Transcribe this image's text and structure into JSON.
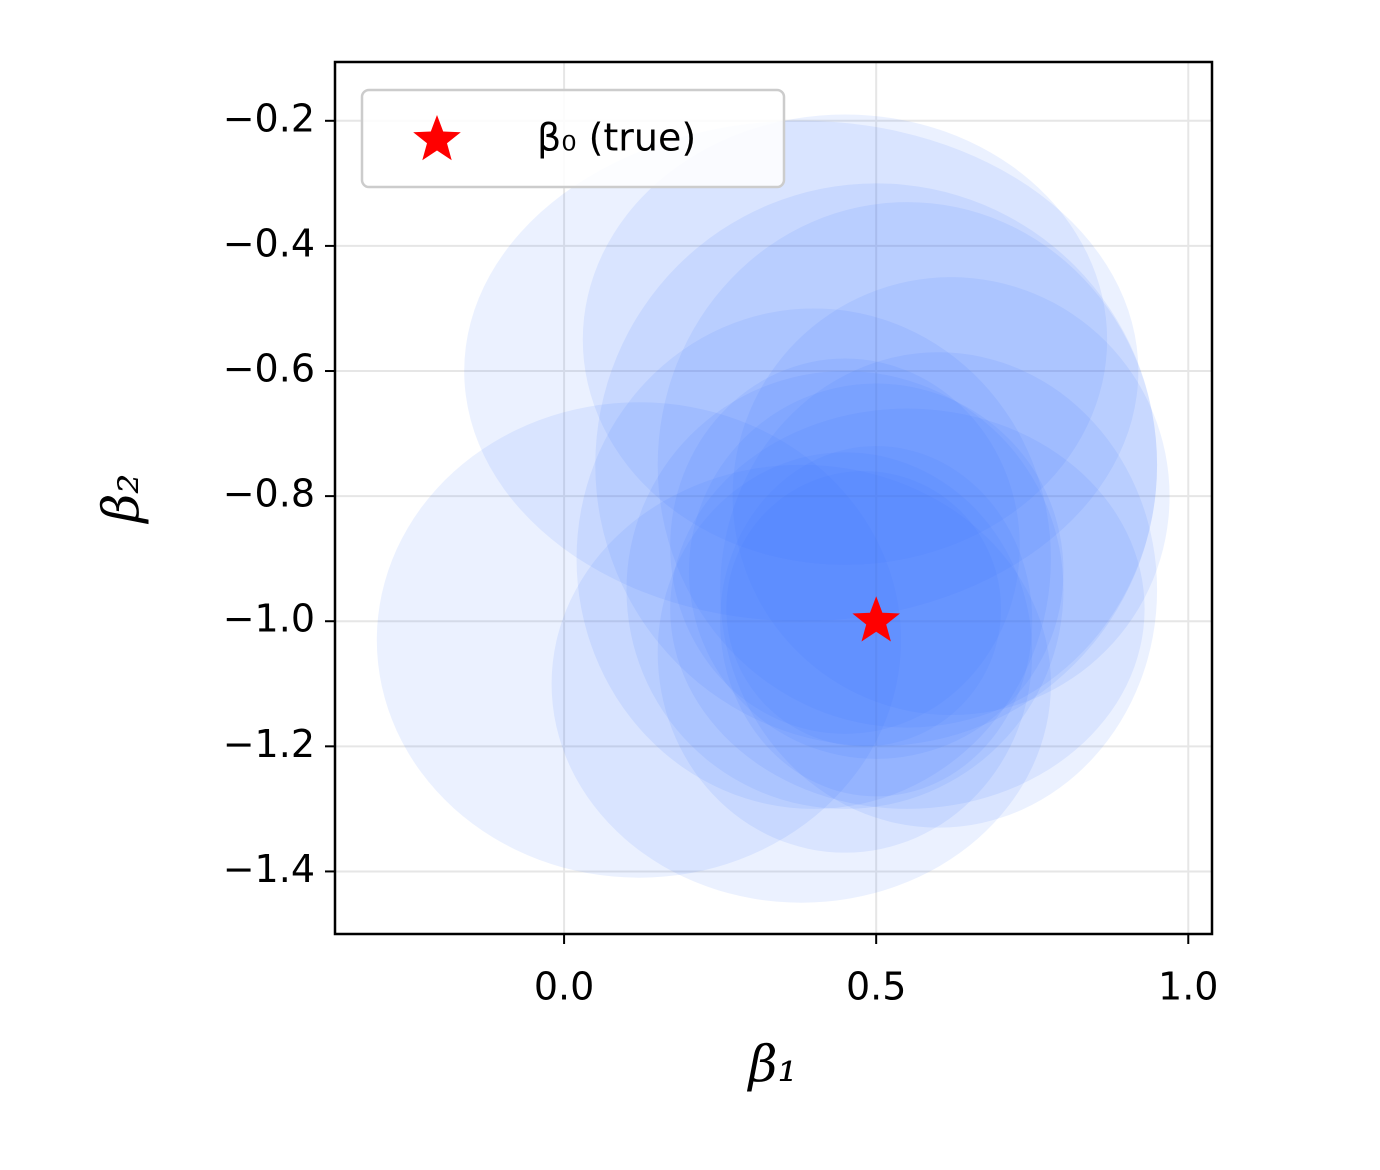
{
  "chart_data": {
    "type": "scatter",
    "xlabel": "β₁",
    "ylabel": "β₂",
    "xlim": [
      -0.367,
      1.038
    ],
    "ylim": [
      -1.5,
      -0.106
    ],
    "xticks": [
      {
        "value": 0,
        "label": "0.0"
      },
      {
        "value": 0.5,
        "label": "0.5"
      },
      {
        "value": 1,
        "label": "1.0"
      }
    ],
    "yticks": [
      {
        "value": -0.2,
        "label": "−0.2"
      },
      {
        "value": -0.4,
        "label": "−0.4"
      },
      {
        "value": -0.6,
        "label": "−0.6"
      },
      {
        "value": -0.8,
        "label": "−0.8"
      },
      {
        "value": -1.0,
        "label": "−1.0"
      },
      {
        "value": -1.2,
        "label": "−1.2"
      },
      {
        "value": -1.4,
        "label": "−1.4"
      }
    ],
    "grid": true,
    "legend": "upper left",
    "ellipses": {
      "color": "#3f74ff",
      "opacity": 0.1,
      "cx": [
        0.12,
        0.38,
        0.45,
        0.5,
        0.45,
        0.55,
        0.6,
        0.4,
        0.45,
        0.5,
        0.38,
        0.55,
        0.5,
        0.45,
        0.62,
        0.48
      ],
      "cy": [
        -1.03,
        -0.6,
        -0.55,
        -0.75,
        -0.95,
        -0.98,
        -0.95,
        -0.9,
        -1.05,
        -0.92,
        -1.1,
        -0.75,
        -1.0,
        -0.88,
        -0.8,
        -0.98
      ],
      "rx": [
        0.42,
        0.54,
        0.42,
        0.45,
        0.35,
        0.38,
        0.35,
        0.38,
        0.3,
        0.3,
        0.4,
        0.4,
        0.25,
        0.28,
        0.35,
        0.22
      ],
      "ry": [
        0.38,
        0.4,
        0.36,
        0.45,
        0.35,
        0.32,
        0.38,
        0.4,
        0.32,
        0.3,
        0.35,
        0.42,
        0.28,
        0.3,
        0.35,
        0.22
      ]
    },
    "series": [
      {
        "name": "β₀ (true)",
        "color": "#ff0000",
        "marker": "star",
        "x": [
          0.5
        ],
        "y": [
          -1.0
        ]
      }
    ]
  }
}
